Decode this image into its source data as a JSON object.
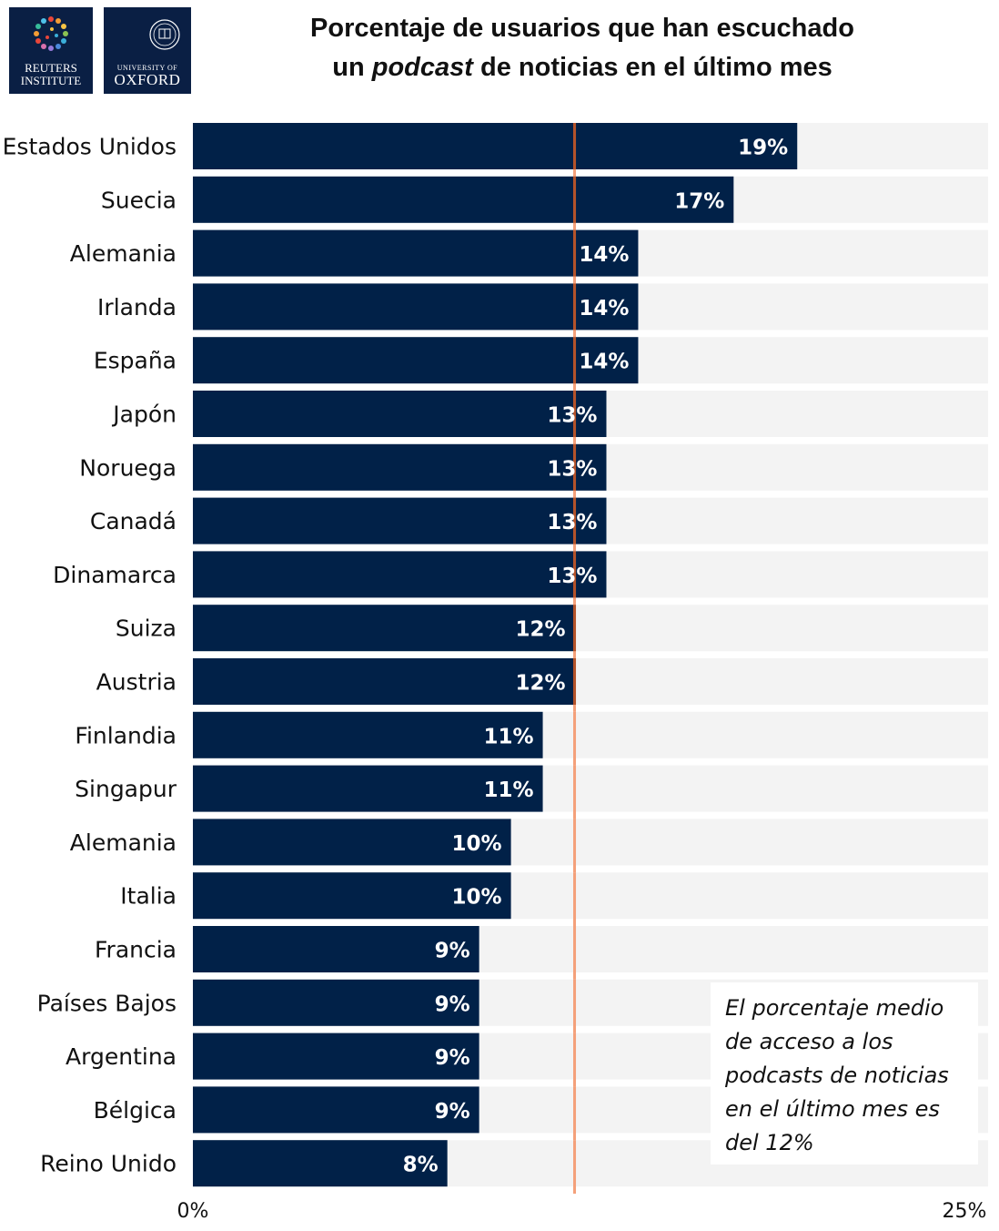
{
  "logos": {
    "reuters": {
      "line1": "REUTERS",
      "line2": "INSTITUTE"
    },
    "oxford": {
      "line1": "UNIVERSITY OF",
      "line2": "OXFORD"
    }
  },
  "header": {
    "title_line1": "Porcentaje de usuarios que han escuchado",
    "title_line2_pre": "un",
    "title_line2_em": "podcast",
    "title_line2_post": "de noticias en el último mes"
  },
  "note": {
    "text": "El porcentaje medio de acceso a los podcasts de noticias en el último mes es del 12%"
  },
  "colors": {
    "bar": "#012148",
    "track": "#f3f3f3",
    "average_line_dark": "#b4532a",
    "average_line_light": "#f4a07a",
    "value_label": "#ffffff"
  },
  "chart_data": {
    "type": "bar",
    "orientation": "horizontal",
    "categories": [
      "Estados Unidos",
      "Suecia",
      "Alemania",
      "Irlanda",
      "España",
      "Japón",
      "Noruega",
      "Canadá",
      "Dinamarca",
      "Suiza",
      "Austria",
      "Finlandia",
      "Singapur",
      "Alemania",
      "Italia",
      "Francia",
      "Países Bajos",
      "Argentina",
      "Bélgica",
      "Reino Unido"
    ],
    "values": [
      19,
      17,
      14,
      14,
      14,
      13,
      13,
      13,
      13,
      12,
      12,
      11,
      11,
      10,
      10,
      9,
      9,
      9,
      9,
      8
    ],
    "value_labels": [
      "19%",
      "17%",
      "14%",
      "14%",
      "14%",
      "13%",
      "13%",
      "13%",
      "13%",
      "12%",
      "12%",
      "11%",
      "11%",
      "10%",
      "10%",
      "9%",
      "9%",
      "9%",
      "9%",
      "8%"
    ],
    "xlim": [
      0,
      25
    ],
    "x_tick_labels": [
      "0%",
      "25%"
    ],
    "reference_line": 12,
    "grid": false
  }
}
